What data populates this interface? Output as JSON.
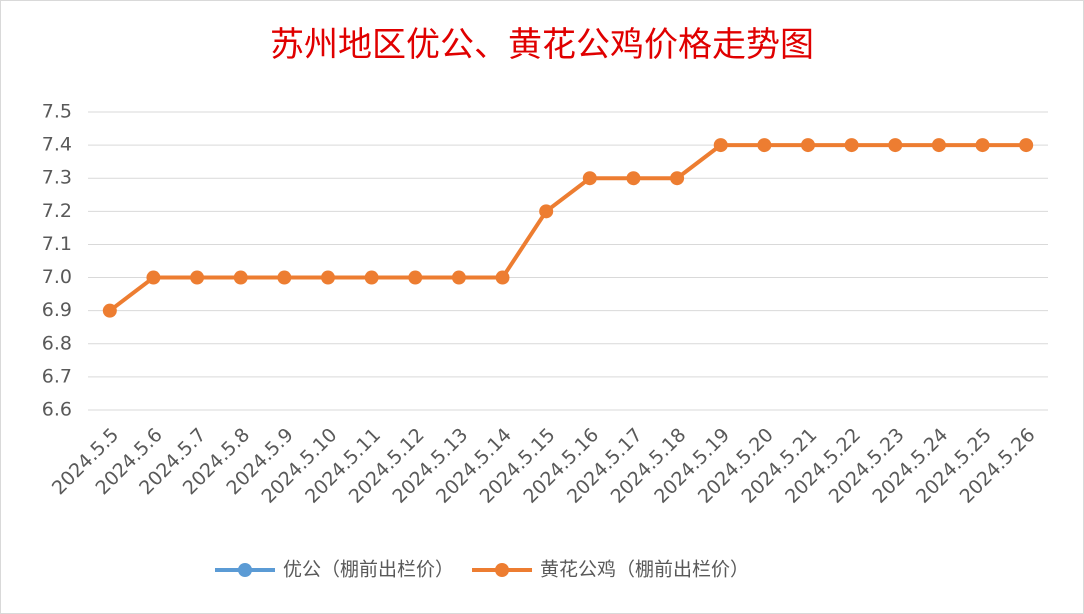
{
  "chart_data": {
    "type": "line",
    "title": "苏州地区优公、黄花公鸡价格走势图",
    "categories": [
      "2024.5.5",
      "2024.5.6",
      "2024.5.7",
      "2024.5.8",
      "2024.5.9",
      "2024.5.10",
      "2024.5.11",
      "2024.5.12",
      "2024.5.13",
      "2024.5.14",
      "2024.5.15",
      "2024.5.16",
      "2024.5.17",
      "2024.5.18",
      "2024.5.19",
      "2024.5.20",
      "2024.5.21",
      "2024.5.22",
      "2024.5.23",
      "2024.5.24",
      "2024.5.25",
      "2024.5.26"
    ],
    "series": [
      {
        "name": "优公（棚前出栏价）",
        "color": "#5b9bd5",
        "values": [
          null,
          null,
          null,
          null,
          null,
          null,
          null,
          null,
          null,
          null,
          null,
          null,
          null,
          null,
          null,
          null,
          null,
          null,
          null,
          null,
          null,
          null
        ]
      },
      {
        "name": "黄花公鸡（棚前出栏价）",
        "color": "#ed7d31",
        "values": [
          6.9,
          7.0,
          7.0,
          7.0,
          7.0,
          7.0,
          7.0,
          7.0,
          7.0,
          7.0,
          7.2,
          7.3,
          7.3,
          7.3,
          7.4,
          7.4,
          7.4,
          7.4,
          7.4,
          7.4,
          7.4,
          7.4
        ]
      }
    ],
    "ylim": [
      6.6,
      7.5
    ],
    "yticks": [
      6.6,
      6.7,
      6.8,
      6.9,
      {
        "value": 7,
        "label": "7.0"
      },
      7.1,
      7.2,
      7.3,
      7.4,
      7.5
    ],
    "grid": true,
    "legend": "bottom"
  }
}
